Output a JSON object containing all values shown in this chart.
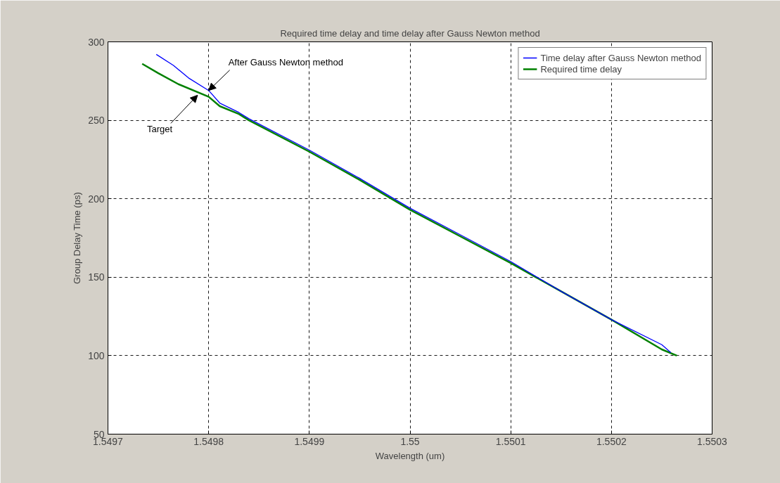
{
  "chart_data": {
    "type": "line",
    "title": "Required time delay and time delay after Gauss Newton method",
    "xlabel": "Wavelength (um)",
    "ylabel": "Group Delay Time (ps)",
    "xlim": [
      1.5497,
      1.5503
    ],
    "xticks": [
      1.5497,
      1.5498,
      1.5499,
      1.55,
      1.5501,
      1.5502,
      1.5503
    ],
    "ylim": [
      50,
      300
    ],
    "yticks": [
      50,
      100,
      150,
      200,
      250,
      300
    ],
    "grid": true,
    "legend": "top right",
    "line_style": "solid",
    "marker": "none",
    "series": [
      {
        "name": "Time delay after Gauss Newton method",
        "color": "#0000ff",
        "x": [
          1.549748,
          1.549765,
          1.54978,
          1.5498,
          1.549811,
          1.54983,
          1.54984,
          1.5499,
          1.54995,
          1.55,
          1.55005,
          1.5501,
          1.55015,
          1.5502,
          1.55025,
          1.550259
        ],
        "values": [
          292,
          285,
          277,
          269,
          261,
          255,
          251,
          231,
          213,
          194,
          177,
          160,
          141,
          123,
          107,
          102
        ]
      },
      {
        "name": "Required time delay",
        "color": "#008000",
        "x": [
          1.549734,
          1.54975,
          1.54977,
          1.5498,
          1.549811,
          1.54983,
          1.54984,
          1.5499,
          1.54995,
          1.55,
          1.55005,
          1.5501,
          1.55015,
          1.5502,
          1.55025,
          1.550265
        ],
        "values": [
          286,
          280,
          273,
          265,
          259,
          254,
          250,
          230,
          212,
          193,
          176,
          159,
          141,
          123,
          104,
          100
        ]
      }
    ],
    "annotations": [
      {
        "text": "After Gauss Newton method",
        "x": 1.5498,
        "y": 269
      },
      {
        "text": "Target",
        "x": 1.549789,
        "y": 266
      }
    ]
  }
}
